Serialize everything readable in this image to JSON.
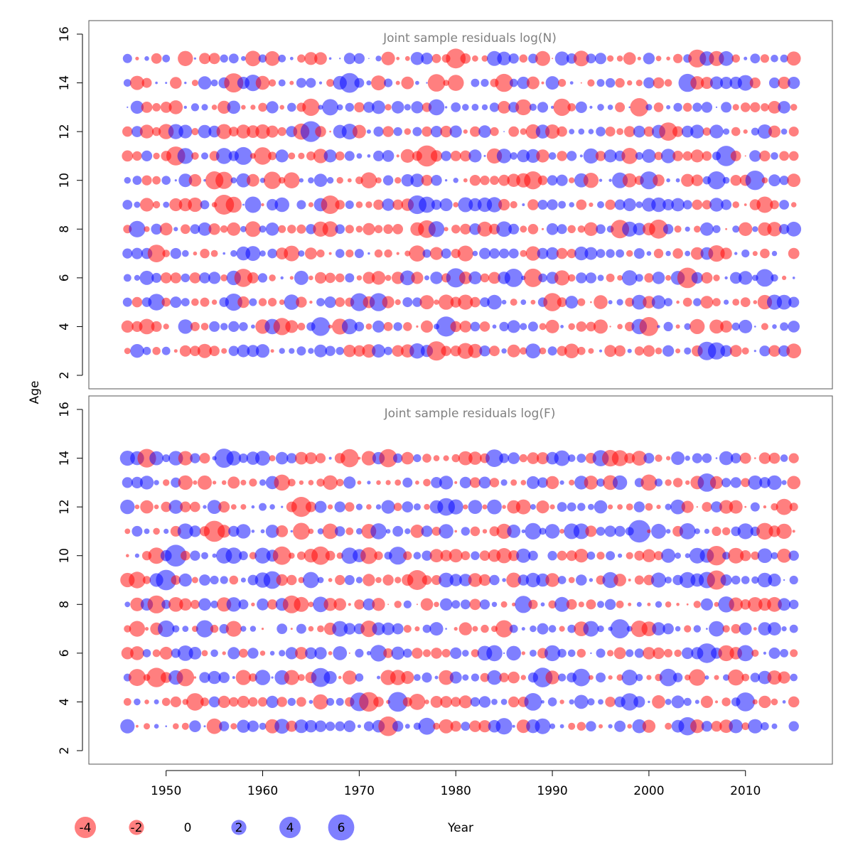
{
  "colors": {
    "negative": "#ff0000",
    "positive": "#0000ff",
    "bubble_opacity": 0.5,
    "frame": "#555555"
  },
  "chart_data": [
    {
      "type": "scatter",
      "title": "Joint sample residuals log(N)",
      "xlabel": "",
      "ylabel": "Age",
      "xlim": [
        1942,
        2019
      ],
      "ylim": [
        1.4,
        16.6
      ],
      "yticks": [
        "2",
        "4",
        "6",
        "8",
        "10",
        "12",
        "14",
        "16"
      ],
      "ages": [
        3,
        4,
        5,
        6,
        7,
        8,
        9,
        10,
        11,
        12,
        13,
        14,
        15
      ],
      "years": [
        1946,
        2015
      ],
      "seed": 11
    },
    {
      "type": "scatter",
      "title": "Joint sample residuals log(F)",
      "xlabel": "Year",
      "ylabel": "Age",
      "xlim": [
        1942,
        2019
      ],
      "ylim": [
        1.4,
        16.6
      ],
      "yticks": [
        "2",
        "4",
        "6",
        "8",
        "10",
        "12",
        "14",
        "16"
      ],
      "xticks": [
        "1950",
        "1960",
        "1970",
        "1980",
        "1990",
        "2000",
        "2010"
      ],
      "ages": [
        3,
        4,
        5,
        6,
        7,
        8,
        9,
        10,
        11,
        12,
        13,
        14
      ],
      "years": [
        1946,
        2015
      ],
      "seed": 29
    }
  ],
  "axes": {
    "ylabel": "Age",
    "xlabel": "Year",
    "xticks": [
      "1950",
      "1960",
      "1970",
      "1980",
      "1990",
      "2000",
      "2010"
    ],
    "yticks": [
      "2",
      "4",
      "6",
      "8",
      "10",
      "12",
      "14",
      "16"
    ]
  },
  "panels": [
    {
      "title": "Joint sample residuals log(N)"
    },
    {
      "title": "Joint sample residuals log(F)"
    }
  ],
  "legend": {
    "items": [
      {
        "label": "-4",
        "value": -4
      },
      {
        "label": "-2",
        "value": -2
      },
      {
        "label": "0",
        "value": 0
      },
      {
        "label": "2",
        "value": 2
      },
      {
        "label": "4",
        "value": 4
      },
      {
        "label": "6",
        "value": 6
      }
    ]
  }
}
